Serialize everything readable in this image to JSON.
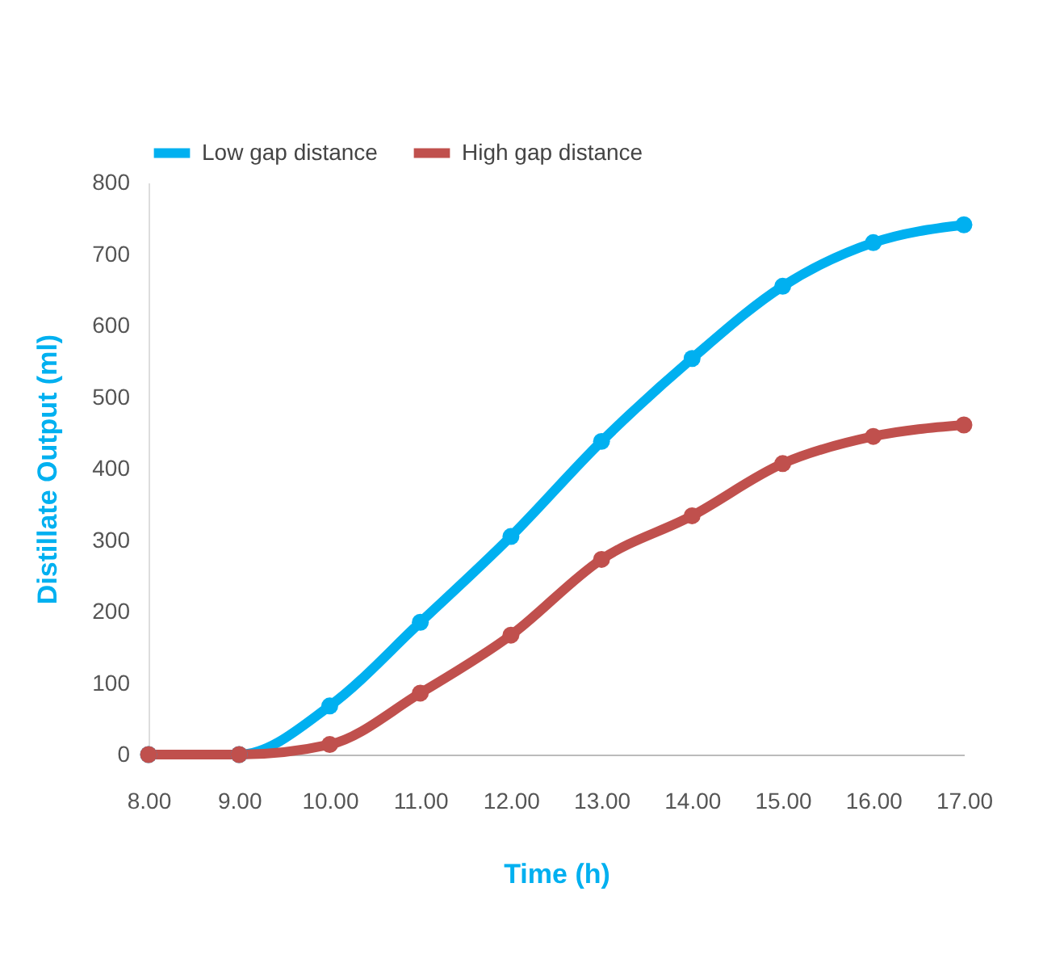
{
  "chart_data": {
    "type": "line",
    "xlabel": "Time (h)",
    "ylabel": "Distillate Output (ml)",
    "categories": [
      "8.00",
      "9.00",
      "10.00",
      "11.00",
      "12.00",
      "13.00",
      "14.00",
      "15.00",
      "16.00",
      "17.00"
    ],
    "series": [
      {
        "name": "Low gap distance",
        "color": "#00b0f0",
        "values": [
          0,
          0,
          68,
          185,
          305,
          438,
          554,
          655,
          716,
          741
        ]
      },
      {
        "name": "High gap distance",
        "color": "#c0504d",
        "values": [
          0,
          0,
          14,
          86,
          167,
          273,
          334,
          407,
          445,
          461
        ]
      }
    ],
    "ylim": [
      0,
      800
    ],
    "yticks": [
      0,
      100,
      200,
      300,
      400,
      500,
      600,
      700,
      800
    ],
    "grid": false,
    "legend": "top",
    "marker": "circle",
    "line_style": "solid"
  }
}
